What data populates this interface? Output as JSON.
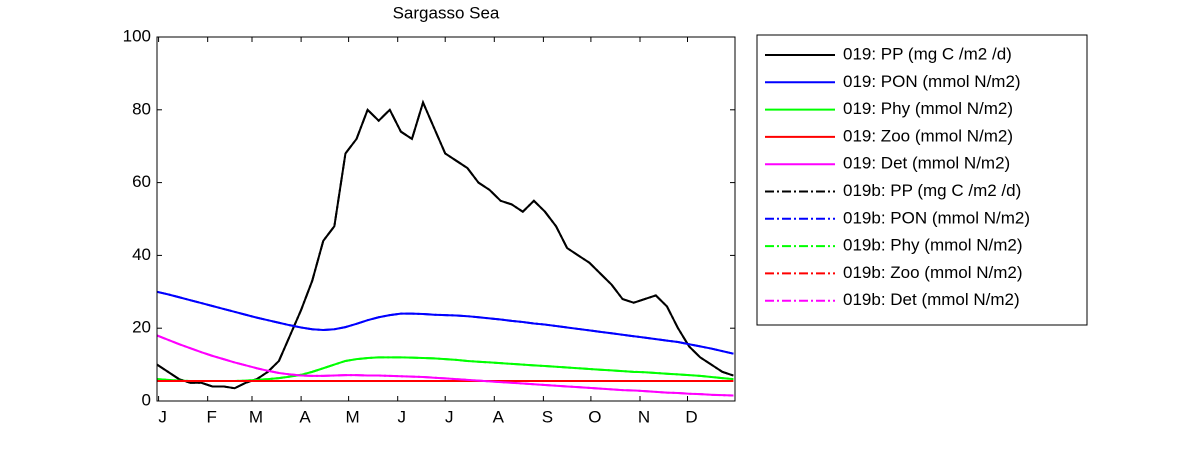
{
  "chart_data": {
    "type": "line",
    "title": "Sargasso Sea",
    "x": [
      0,
      7,
      14,
      21,
      28,
      35,
      42,
      49,
      56,
      63,
      70,
      77,
      84,
      91,
      98,
      105,
      112,
      119,
      126,
      133,
      140,
      147,
      154,
      161,
      168,
      175,
      182,
      189,
      196,
      203,
      210,
      217,
      224,
      231,
      238,
      245,
      252,
      259,
      266,
      273,
      280,
      287,
      294,
      301,
      308,
      315,
      322,
      329,
      336,
      343,
      350,
      357,
      364
    ],
    "xlim": [
      0,
      365
    ],
    "xticks": [
      {
        "value": 1,
        "label": "J"
      },
      {
        "value": 32,
        "label": "F"
      },
      {
        "value": 60,
        "label": "M"
      },
      {
        "value": 91,
        "label": "A"
      },
      {
        "value": 121,
        "label": "M"
      },
      {
        "value": 152,
        "label": "J"
      },
      {
        "value": 182,
        "label": "J"
      },
      {
        "value": 213,
        "label": "A"
      },
      {
        "value": 244,
        "label": "S"
      },
      {
        "value": 274,
        "label": "O"
      },
      {
        "value": 305,
        "label": "N"
      },
      {
        "value": 335,
        "label": "D"
      }
    ],
    "ylim": [
      0,
      100
    ],
    "yticks": [
      0,
      20,
      40,
      60,
      80,
      100
    ],
    "grid": false,
    "legend": "outside-right",
    "series": [
      {
        "name": "019: PP (mg C /m2 /d)",
        "color": "#000000",
        "style": "solid",
        "values": [
          10,
          8,
          6,
          5,
          5,
          4,
          4,
          3.5,
          5,
          6,
          8,
          11,
          18,
          25,
          33,
          44,
          48,
          68,
          72,
          80,
          77,
          80,
          74,
          72,
          82,
          75,
          68,
          66,
          64,
          60,
          58,
          55,
          54,
          52,
          55,
          52,
          48,
          42,
          40,
          38,
          35,
          32,
          28,
          27,
          28,
          29,
          26,
          20,
          15,
          12,
          10,
          8,
          7
        ]
      },
      {
        "name": "019: PON (mmol N/m2)",
        "color": "#0000ff",
        "style": "solid",
        "values": [
          30,
          29.3,
          28.5,
          27.7,
          26.9,
          26.1,
          25.3,
          24.5,
          23.7,
          22.9,
          22.2,
          21.5,
          20.8,
          20.2,
          19.7,
          19.5,
          19.7,
          20.3,
          21.2,
          22.2,
          23,
          23.6,
          24,
          24,
          23.9,
          23.7,
          23.6,
          23.5,
          23.3,
          23,
          22.7,
          22.4,
          22,
          21.7,
          21.3,
          21,
          20.6,
          20.2,
          19.8,
          19.4,
          19,
          18.6,
          18.2,
          17.8,
          17.4,
          17,
          16.6,
          16.2,
          15.6,
          15,
          14.4,
          13.7,
          13
        ]
      },
      {
        "name": "019: Phy (mmol N/m2)",
        "color": "#00ff00",
        "style": "solid",
        "values": [
          6,
          5.8,
          5.6,
          5.5,
          5.5,
          5.5,
          5.5,
          5.5,
          5.6,
          5.8,
          6,
          6.3,
          6.7,
          7.2,
          8,
          9,
          10,
          11,
          11.5,
          11.8,
          12,
          12,
          12,
          11.9,
          11.8,
          11.7,
          11.5,
          11.3,
          11,
          10.8,
          10.6,
          10.4,
          10.2,
          10,
          9.8,
          9.6,
          9.4,
          9.2,
          9,
          8.8,
          8.6,
          8.4,
          8.2,
          8,
          7.9,
          7.7,
          7.5,
          7.3,
          7.1,
          6.9,
          6.6,
          6.3,
          6
        ]
      },
      {
        "name": "019: Zoo (mmol N/m2)",
        "color": "#ff0000",
        "style": "solid",
        "values": [
          5.5,
          5.5,
          5.5,
          5.5,
          5.5,
          5.5,
          5.5,
          5.5,
          5.5,
          5.5,
          5.5,
          5.5,
          5.5,
          5.5,
          5.5,
          5.5,
          5.5,
          5.5,
          5.5,
          5.5,
          5.5,
          5.5,
          5.5,
          5.5,
          5.5,
          5.5,
          5.5,
          5.5,
          5.5,
          5.5,
          5.5,
          5.5,
          5.5,
          5.5,
          5.5,
          5.5,
          5.5,
          5.5,
          5.5,
          5.5,
          5.5,
          5.5,
          5.5,
          5.5,
          5.5,
          5.5,
          5.5,
          5.5,
          5.5,
          5.5,
          5.5,
          5.5,
          5.5
        ]
      },
      {
        "name": "019: Det (mmol N/m2)",
        "color": "#ff00ff",
        "style": "solid",
        "values": [
          18,
          16.8,
          15.6,
          14.5,
          13.4,
          12.4,
          11.5,
          10.6,
          9.8,
          9,
          8.3,
          7.7,
          7.3,
          7,
          6.9,
          6.9,
          7,
          7.1,
          7.1,
          7,
          7,
          6.9,
          6.8,
          6.7,
          6.6,
          6.4,
          6.2,
          6,
          5.8,
          5.6,
          5.4,
          5.2,
          5,
          4.8,
          4.6,
          4.4,
          4.2,
          4,
          3.8,
          3.6,
          3.4,
          3.2,
          3,
          2.9,
          2.7,
          2.5,
          2.3,
          2.2,
          2,
          1.9,
          1.7,
          1.6,
          1.5
        ]
      },
      {
        "name": "019b: PP (mg C /m2 /d)",
        "color": "#000000",
        "style": "dashdot",
        "values": [
          10,
          8,
          6,
          5,
          5,
          4,
          4,
          3.5,
          5,
          6,
          8,
          11,
          18,
          25,
          33,
          44,
          48,
          68,
          72,
          80,
          77,
          80,
          74,
          72,
          82,
          75,
          68,
          66,
          64,
          60,
          58,
          55,
          54,
          52,
          55,
          52,
          48,
          42,
          40,
          38,
          35,
          32,
          28,
          27,
          28,
          29,
          26,
          20,
          15,
          12,
          10,
          8,
          7
        ]
      },
      {
        "name": "019b: PON (mmol N/m2)",
        "color": "#0000ff",
        "style": "dashdot",
        "values": [
          30,
          29.3,
          28.5,
          27.7,
          26.9,
          26.1,
          25.3,
          24.5,
          23.7,
          22.9,
          22.2,
          21.5,
          20.8,
          20.2,
          19.7,
          19.5,
          19.7,
          20.3,
          21.2,
          22.2,
          23,
          23.6,
          24,
          24,
          23.9,
          23.7,
          23.6,
          23.5,
          23.3,
          23,
          22.7,
          22.4,
          22,
          21.7,
          21.3,
          21,
          20.6,
          20.2,
          19.8,
          19.4,
          19,
          18.6,
          18.2,
          17.8,
          17.4,
          17,
          16.6,
          16.2,
          15.6,
          15,
          14.4,
          13.7,
          13
        ]
      },
      {
        "name": "019b: Phy (mmol N/m2)",
        "color": "#00ff00",
        "style": "dashdot",
        "values": [
          6,
          5.8,
          5.6,
          5.5,
          5.5,
          5.5,
          5.5,
          5.5,
          5.6,
          5.8,
          6,
          6.3,
          6.7,
          7.2,
          8,
          9,
          10,
          11,
          11.5,
          11.8,
          12,
          12,
          12,
          11.9,
          11.8,
          11.7,
          11.5,
          11.3,
          11,
          10.8,
          10.6,
          10.4,
          10.2,
          10,
          9.8,
          9.6,
          9.4,
          9.2,
          9,
          8.8,
          8.6,
          8.4,
          8.2,
          8,
          7.9,
          7.7,
          7.5,
          7.3,
          7.1,
          6.9,
          6.6,
          6.3,
          6
        ]
      },
      {
        "name": "019b: Zoo (mmol N/m2)",
        "color": "#ff0000",
        "style": "dashdot",
        "values": [
          5.5,
          5.5,
          5.5,
          5.5,
          5.5,
          5.5,
          5.5,
          5.5,
          5.5,
          5.5,
          5.5,
          5.5,
          5.5,
          5.5,
          5.5,
          5.5,
          5.5,
          5.5,
          5.5,
          5.5,
          5.5,
          5.5,
          5.5,
          5.5,
          5.5,
          5.5,
          5.5,
          5.5,
          5.5,
          5.5,
          5.5,
          5.5,
          5.5,
          5.5,
          5.5,
          5.5,
          5.5,
          5.5,
          5.5,
          5.5,
          5.5,
          5.5,
          5.5,
          5.5,
          5.5,
          5.5,
          5.5,
          5.5,
          5.5,
          5.5,
          5.5,
          5.5,
          5.5
        ]
      },
      {
        "name": "019b: Det (mmol N/m2)",
        "color": "#ff00ff",
        "style": "dashdot",
        "values": [
          18,
          16.8,
          15.6,
          14.5,
          13.4,
          12.4,
          11.5,
          10.6,
          9.8,
          9,
          8.3,
          7.7,
          7.3,
          7,
          6.9,
          6.9,
          7,
          7.1,
          7.1,
          7,
          7,
          6.9,
          6.8,
          6.7,
          6.6,
          6.4,
          6.2,
          6,
          5.8,
          5.6,
          5.4,
          5.2,
          5,
          4.8,
          4.6,
          4.4,
          4.2,
          4,
          3.8,
          3.6,
          3.4,
          3.2,
          3,
          2.9,
          2.7,
          2.5,
          2.3,
          2.2,
          2,
          1.9,
          1.7,
          1.6,
          1.5
        ]
      }
    ]
  }
}
